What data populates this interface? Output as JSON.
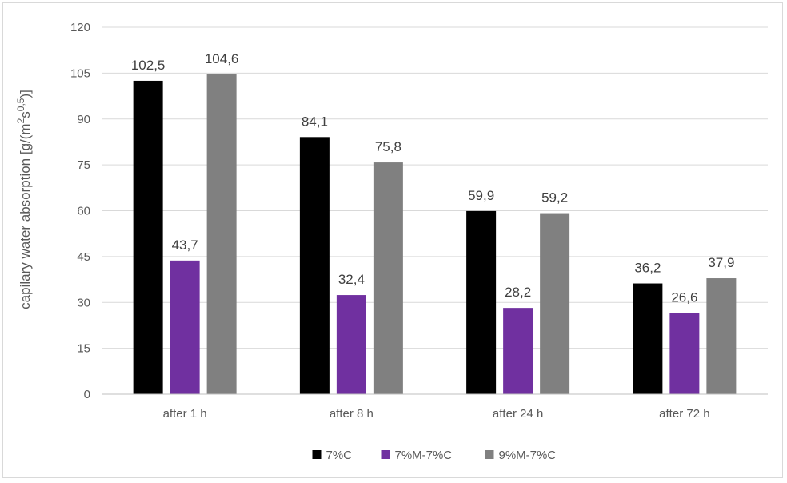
{
  "chart_data": {
    "type": "bar",
    "title": "",
    "xlabel": "",
    "ylabel": "capilary water absorption  [g/(m",
    "ylabel_sup1": "2",
    "ylabel_mid": "s",
    "ylabel_sup2": "0,5",
    "ylabel_end": ")]",
    "ylim": [
      0,
      120
    ],
    "yticks": [
      0,
      15,
      30,
      45,
      60,
      75,
      90,
      105,
      120
    ],
    "grid": true,
    "legend_position": "bottom",
    "categories": [
      "after 1 h",
      "after 8 h",
      "after 24 h",
      "after 72 h"
    ],
    "series": [
      {
        "name": "7%C",
        "color": "#000000",
        "values": [
          102.5,
          84.1,
          59.9,
          36.2
        ],
        "labels": [
          "102,5",
          "84,1",
          "59,9",
          "36,2"
        ]
      },
      {
        "name": "7%M-7%C",
        "color": "#7030a0",
        "values": [
          43.7,
          32.4,
          28.2,
          26.6
        ],
        "labels": [
          "43,7",
          "32,4",
          "28,2",
          "26,6"
        ]
      },
      {
        "name": "9%M-7%C",
        "color": "#808080",
        "values": [
          104.6,
          75.8,
          59.2,
          37.9
        ],
        "labels": [
          "104,6",
          "75,8",
          "59,2",
          "37,9"
        ]
      }
    ]
  }
}
